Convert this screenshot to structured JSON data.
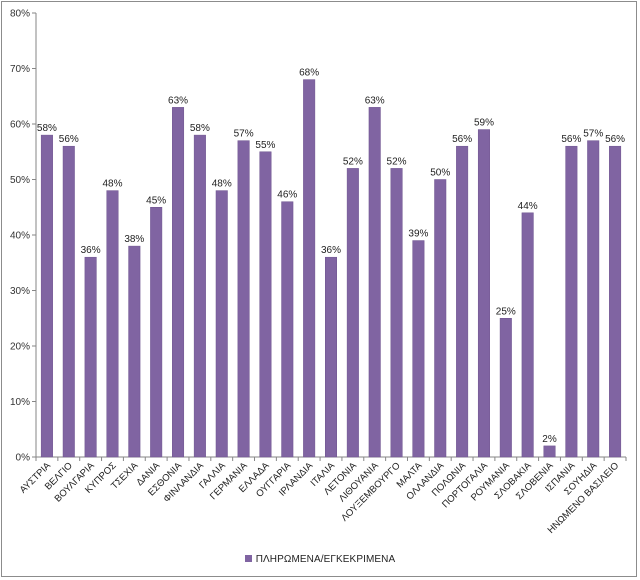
{
  "chart_data": {
    "type": "bar",
    "title": "",
    "xlabel": "",
    "ylabel": "",
    "ylim": [
      0,
      80
    ],
    "yticks": [
      "0%",
      "10%",
      "20%",
      "30%",
      "40%",
      "50%",
      "60%",
      "70%",
      "80%"
    ],
    "grid": false,
    "legend_position": "bottom",
    "categories": [
      "ΑΥΣΤΡΙΑ",
      "ΒΕΛΓΙΟ",
      "ΒΟΥΛΓΑΡΙΑ",
      "ΚΥΠΡΟΣ",
      "ΤΣΕΧΙΑ",
      "ΔΑΝΙΑ",
      "ΕΣΘΟΝΙΑ",
      "ΦΙΝΛΑΝΔΙΑ",
      "ΓΑΛΛΙΑ",
      "ΓΕΡΜΑΝΙΑ",
      "ΕΛΛΑΔΑ",
      "ΟΥΓΓΑΡΙΑ",
      "ΙΡΛΑΝΔΙΑ",
      "ΙΤΑΛΙΑ",
      "ΛΕΤΟΝΙΑ",
      "ΛΙΘΟΥΑΝΙΑ",
      "ΛΟΥΞΕΜΒΟΥΡΓΟ",
      "ΜΑΛΤΑ",
      "ΟΛΛΑΝΔΙΑ",
      "ΠΟΛΩΝΙΑ",
      "ΠΟΡΤΟΓΑΛΙΑ",
      "ΡΟΥΜΑΝΙΑ",
      "ΣΛΟΒΑΚΙΑ",
      "ΣΛΟΒΕΝΙΑ",
      "ΙΣΠΑΝΙΑ",
      "ΣΟΥΗΔΙΑ",
      "ΗΝΩΜΕΝΟ ΒΑΣΙΛΕΙΟ"
    ],
    "series": [
      {
        "name": "ΠΛΗΡΩΜΕΝΑ/ΕΓΚΕΚΡΙΜΕΝΑ",
        "color": "#8064a2",
        "values": [
          58,
          56,
          36,
          48,
          38,
          45,
          63,
          58,
          48,
          57,
          55,
          46,
          68,
          36,
          52,
          63,
          52,
          39,
          50,
          56,
          59,
          25,
          44,
          2,
          56,
          57,
          56
        ],
        "labels": [
          "58%",
          "56%",
          "36%",
          "48%",
          "38%",
          "45%",
          "63%",
          "58%",
          "48%",
          "57%",
          "55%",
          "46%",
          "68%",
          "36%",
          "52%",
          "63%",
          "52%",
          "39%",
          "50%",
          "56%",
          "59%",
          "25%",
          "44%",
          "2%",
          "56%",
          "57%",
          "56%"
        ]
      }
    ]
  },
  "legend": {
    "label": "ΠΛΗΡΩΜΕΝΑ/ΕΓΚΕΚΡΙΜΕΝΑ"
  }
}
